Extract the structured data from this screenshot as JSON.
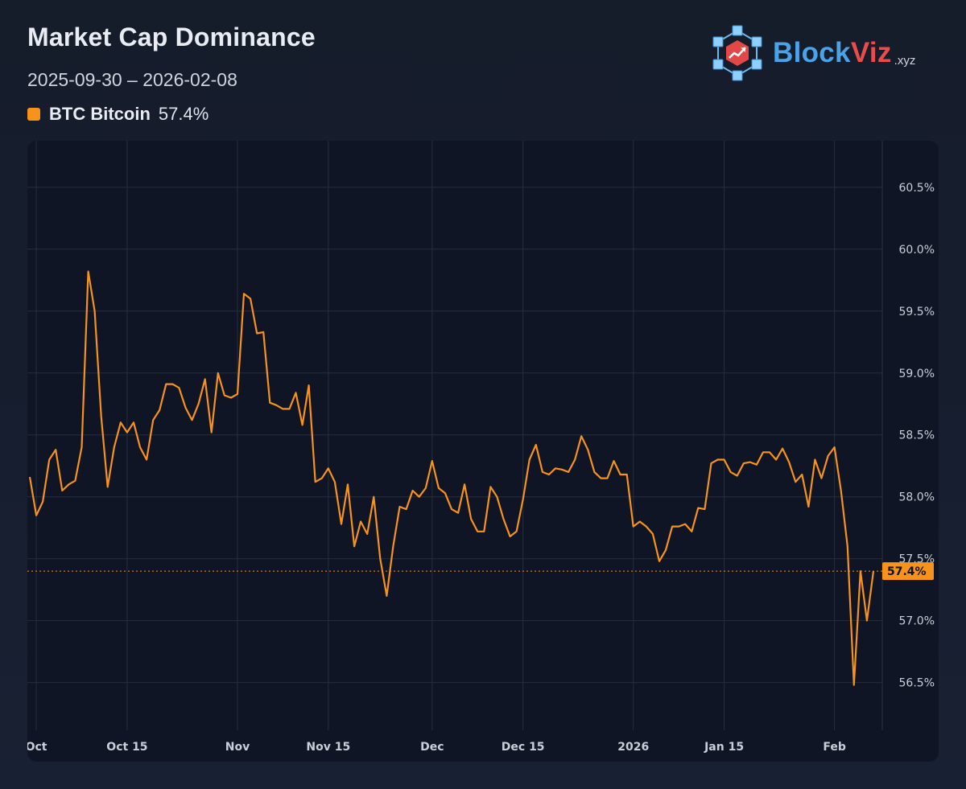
{
  "header": {
    "title": "Market Cap Dominance",
    "date_range": "2025-09-30 – 2026-02-08"
  },
  "legend": {
    "ticker": "BTC",
    "name": "Bitcoin",
    "label": "BTC Bitcoin",
    "value_text": "57.4%",
    "color": "#f7931a"
  },
  "brand": {
    "name_main": "Block",
    "name_accent": "Viz",
    "tld": ".xyz",
    "colors": {
      "primary": "#4aa3e8",
      "accent": "#ea4b4b"
    },
    "icon": "network-cube-chart-logo"
  },
  "colors": {
    "background": "#161d2c",
    "panel": "#0f1525",
    "grid": "#2a3242",
    "series": "#f7931a"
  },
  "chart_data": {
    "type": "line",
    "title": "Market Cap Dominance",
    "subtitle": "2025-09-30 – 2026-02-08",
    "xlabel": "",
    "ylabel": "",
    "x_start": "2025-09-30",
    "x_end": "2026-02-08",
    "x_ticks": [
      {
        "label": "Oct",
        "date": "2025-10-01"
      },
      {
        "label": "Oct 15",
        "date": "2025-10-15"
      },
      {
        "label": "Nov",
        "date": "2025-11-01"
      },
      {
        "label": "Nov 15",
        "date": "2025-11-15"
      },
      {
        "label": "Dec",
        "date": "2025-12-01"
      },
      {
        "label": "Dec 15",
        "date": "2025-12-15"
      },
      {
        "label": "2026",
        "date": "2026-01-01"
      },
      {
        "label": "Jan 15",
        "date": "2026-01-15"
      },
      {
        "label": "Feb",
        "date": "2026-02-01"
      }
    ],
    "ylim": [
      56.0,
      60.75
    ],
    "y_ticks": [
      56.5,
      57.0,
      57.5,
      58.0,
      58.5,
      59.0,
      59.5,
      60.0,
      60.5
    ],
    "y_tick_suffix": "%",
    "y_axis_side": "right",
    "grid": true,
    "current_value": 57.4,
    "current_label": "57.4%",
    "series": [
      {
        "name": "BTC Bitcoin",
        "color": "#f7931a",
        "points": [
          [
            "2025-09-30",
            58.16
          ],
          [
            "2025-10-01",
            57.85
          ],
          [
            "2025-10-02",
            57.96
          ],
          [
            "2025-10-03",
            58.3
          ],
          [
            "2025-10-04",
            58.38
          ],
          [
            "2025-10-05",
            58.05
          ],
          [
            "2025-10-06",
            58.1
          ],
          [
            "2025-10-07",
            58.13
          ],
          [
            "2025-10-08",
            58.4
          ],
          [
            "2025-10-09",
            59.82
          ],
          [
            "2025-10-10",
            59.5
          ],
          [
            "2025-10-11",
            58.65
          ],
          [
            "2025-10-12",
            58.08
          ],
          [
            "2025-10-13",
            58.4
          ],
          [
            "2025-10-14",
            58.6
          ],
          [
            "2025-10-15",
            58.52
          ],
          [
            "2025-10-16",
            58.6
          ],
          [
            "2025-10-17",
            58.4
          ],
          [
            "2025-10-18",
            58.3
          ],
          [
            "2025-10-19",
            58.62
          ],
          [
            "2025-10-20",
            58.7
          ],
          [
            "2025-10-21",
            58.91
          ],
          [
            "2025-10-22",
            58.91
          ],
          [
            "2025-10-23",
            58.88
          ],
          [
            "2025-10-24",
            58.72
          ],
          [
            "2025-10-25",
            58.62
          ],
          [
            "2025-10-26",
            58.75
          ],
          [
            "2025-10-27",
            58.95
          ],
          [
            "2025-10-28",
            58.52
          ],
          [
            "2025-10-29",
            59.0
          ],
          [
            "2025-10-30",
            58.82
          ],
          [
            "2025-10-31",
            58.8
          ],
          [
            "2025-11-01",
            58.83
          ],
          [
            "2025-11-02",
            59.64
          ],
          [
            "2025-11-03",
            59.6
          ],
          [
            "2025-11-04",
            59.32
          ],
          [
            "2025-11-05",
            59.33
          ],
          [
            "2025-11-06",
            58.76
          ],
          [
            "2025-11-07",
            58.74
          ],
          [
            "2025-11-08",
            58.71
          ],
          [
            "2025-11-09",
            58.71
          ],
          [
            "2025-11-10",
            58.84
          ],
          [
            "2025-11-11",
            58.58
          ],
          [
            "2025-11-12",
            58.9
          ],
          [
            "2025-11-13",
            58.12
          ],
          [
            "2025-11-14",
            58.15
          ],
          [
            "2025-11-15",
            58.23
          ],
          [
            "2025-11-16",
            58.12
          ],
          [
            "2025-11-17",
            57.78
          ],
          [
            "2025-11-18",
            58.1
          ],
          [
            "2025-11-19",
            57.6
          ],
          [
            "2025-11-20",
            57.8
          ],
          [
            "2025-11-21",
            57.7
          ],
          [
            "2025-11-22",
            58.0
          ],
          [
            "2025-11-23",
            57.5
          ],
          [
            "2025-11-24",
            57.2
          ],
          [
            "2025-11-25",
            57.6
          ],
          [
            "2025-11-26",
            57.92
          ],
          [
            "2025-11-27",
            57.9
          ],
          [
            "2025-11-28",
            58.05
          ],
          [
            "2025-11-29",
            58.0
          ],
          [
            "2025-11-30",
            58.07
          ],
          [
            "2025-12-01",
            58.29
          ],
          [
            "2025-12-02",
            58.07
          ],
          [
            "2025-12-03",
            58.03
          ],
          [
            "2025-12-04",
            57.9
          ],
          [
            "2025-12-05",
            57.87
          ],
          [
            "2025-12-06",
            58.1
          ],
          [
            "2025-12-07",
            57.82
          ],
          [
            "2025-12-08",
            57.72
          ],
          [
            "2025-12-09",
            57.72
          ],
          [
            "2025-12-10",
            58.08
          ],
          [
            "2025-12-11",
            58.0
          ],
          [
            "2025-12-12",
            57.82
          ],
          [
            "2025-12-13",
            57.68
          ],
          [
            "2025-12-14",
            57.72
          ],
          [
            "2025-12-15",
            57.98
          ],
          [
            "2025-12-16",
            58.3
          ],
          [
            "2025-12-17",
            58.42
          ],
          [
            "2025-12-18",
            58.2
          ],
          [
            "2025-12-19",
            58.18
          ],
          [
            "2025-12-20",
            58.23
          ],
          [
            "2025-12-21",
            58.22
          ],
          [
            "2025-12-22",
            58.2
          ],
          [
            "2025-12-23",
            58.3
          ],
          [
            "2025-12-24",
            58.49
          ],
          [
            "2025-12-25",
            58.38
          ],
          [
            "2025-12-26",
            58.2
          ],
          [
            "2025-12-27",
            58.15
          ],
          [
            "2025-12-28",
            58.15
          ],
          [
            "2025-12-29",
            58.29
          ],
          [
            "2025-12-30",
            58.18
          ],
          [
            "2025-12-31",
            58.18
          ],
          [
            "2026-01-01",
            57.76
          ],
          [
            "2026-01-02",
            57.8
          ],
          [
            "2026-01-03",
            57.76
          ],
          [
            "2026-01-04",
            57.7
          ],
          [
            "2026-01-05",
            57.48
          ],
          [
            "2026-01-06",
            57.57
          ],
          [
            "2026-01-07",
            57.76
          ],
          [
            "2026-01-08",
            57.76
          ],
          [
            "2026-01-09",
            57.78
          ],
          [
            "2026-01-10",
            57.72
          ],
          [
            "2026-01-11",
            57.91
          ],
          [
            "2026-01-12",
            57.9
          ],
          [
            "2026-01-13",
            58.27
          ],
          [
            "2026-01-14",
            58.3
          ],
          [
            "2026-01-15",
            58.3
          ],
          [
            "2026-01-16",
            58.2
          ],
          [
            "2026-01-17",
            58.17
          ],
          [
            "2026-01-18",
            58.27
          ],
          [
            "2026-01-19",
            58.28
          ],
          [
            "2026-01-20",
            58.26
          ],
          [
            "2026-01-21",
            58.36
          ],
          [
            "2026-01-22",
            58.36
          ],
          [
            "2026-01-23",
            58.3
          ],
          [
            "2026-01-24",
            58.39
          ],
          [
            "2026-01-25",
            58.28
          ],
          [
            "2026-01-26",
            58.12
          ],
          [
            "2026-01-27",
            58.18
          ],
          [
            "2026-01-28",
            57.92
          ],
          [
            "2026-01-29",
            58.3
          ],
          [
            "2026-01-30",
            58.15
          ],
          [
            "2026-01-31",
            58.33
          ],
          [
            "2026-02-01",
            58.4
          ],
          [
            "2026-02-02",
            58.05
          ],
          [
            "2026-02-03",
            57.6
          ],
          [
            "2026-02-04",
            56.48
          ],
          [
            "2026-02-05",
            57.4
          ],
          [
            "2026-02-06",
            57.0
          ],
          [
            "2026-02-07",
            57.4
          ]
        ]
      }
    ]
  }
}
